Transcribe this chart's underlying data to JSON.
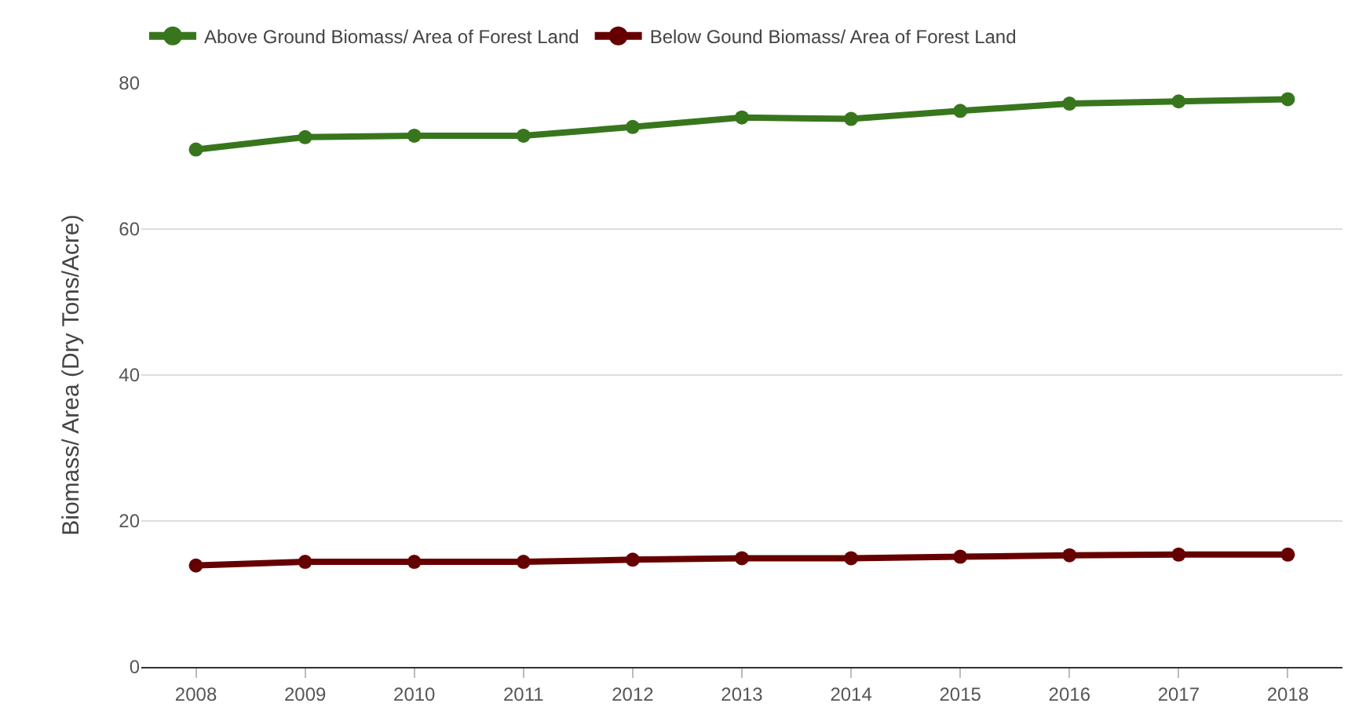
{
  "chart_data": {
    "type": "line",
    "ylabel": "Biomass/ Area (Dry Tons/Acre)",
    "categories": [
      "2008",
      "2009",
      "2010",
      "2011",
      "2012",
      "2013",
      "2014",
      "2015",
      "2016",
      "2017",
      "2018"
    ],
    "series": [
      {
        "name": "Above Ground Biomass/ Area of Forest Land",
        "color": "#38761d",
        "values": [
          70.9,
          72.6,
          72.8,
          72.8,
          74.0,
          75.3,
          75.1,
          76.2,
          77.2,
          77.5,
          77.8
        ]
      },
      {
        "name": "Below Gound Biomass/ Area of Forest Land",
        "color": "#660000",
        "values": [
          13.9,
          14.4,
          14.4,
          14.4,
          14.7,
          14.9,
          14.9,
          15.1,
          15.3,
          15.4,
          15.4
        ]
      }
    ],
    "ylim": [
      0,
      80
    ],
    "yticks": [
      0,
      20,
      40,
      60,
      80
    ],
    "grid": "y",
    "legend": "top left",
    "marker": "circle",
    "line_style": "solid"
  }
}
